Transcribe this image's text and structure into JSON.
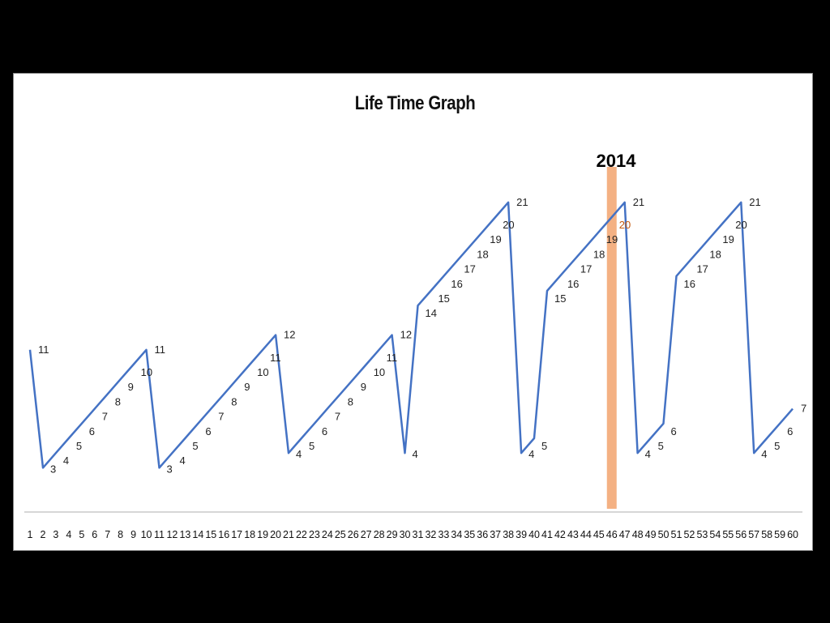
{
  "chart_data": {
    "type": "line",
    "title": "Life Time Graph",
    "xlabel": "",
    "ylabel": "",
    "x": [
      1,
      2,
      3,
      4,
      5,
      6,
      7,
      8,
      9,
      10,
      11,
      12,
      13,
      14,
      15,
      16,
      17,
      18,
      19,
      20,
      21,
      22,
      23,
      24,
      25,
      26,
      27,
      28,
      29,
      30,
      31,
      32,
      33,
      34,
      35,
      36,
      37,
      38,
      39,
      40,
      41,
      42,
      43,
      44,
      45,
      46,
      47,
      48,
      49,
      50,
      51,
      52,
      53,
      54,
      55,
      56,
      57,
      58,
      59,
      60
    ],
    "values": [
      11,
      3,
      4,
      5,
      6,
      7,
      8,
      9,
      10,
      11,
      3,
      4,
      5,
      6,
      7,
      8,
      9,
      10,
      11,
      12,
      4,
      5,
      6,
      7,
      8,
      9,
      10,
      11,
      12,
      4,
      14,
      15,
      16,
      17,
      18,
      19,
      20,
      21,
      4,
      5,
      15,
      16,
      17,
      18,
      19,
      20,
      21,
      4,
      5,
      6,
      16,
      17,
      18,
      19,
      20,
      21,
      4,
      5,
      6,
      7
    ],
    "data_labels": [
      "11",
      "3",
      "4",
      "5",
      "6",
      "7",
      "8",
      "9",
      "10",
      "11",
      "3",
      "4",
      "5",
      "6",
      "7",
      "8",
      "9",
      "10",
      "11",
      "12",
      "4",
      "5",
      "6",
      "7",
      "8",
      "9",
      "10",
      "11",
      "12",
      "4",
      "14",
      "15",
      "16",
      "17",
      "18",
      "19",
      "20",
      "21",
      "4",
      "5",
      "15",
      "16",
      "17",
      "18",
      "19",
      "20",
      "21",
      "4",
      "5",
      "6",
      "16",
      "17",
      "18",
      "19",
      "20",
      "21",
      "4",
      "5",
      "6",
      "7"
    ],
    "highlight": {
      "x": 46,
      "label": "2014",
      "color": "#f4b183"
    },
    "line_color": "#4472c4",
    "highlight_label_color": "#c55a11",
    "ylim": [
      0,
      23
    ],
    "grid": false,
    "legend": "none"
  }
}
